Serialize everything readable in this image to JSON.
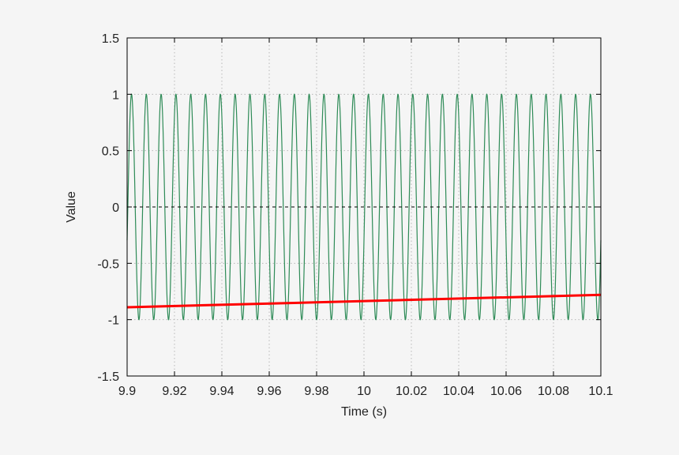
{
  "chart_data": {
    "type": "line",
    "title": "",
    "xlabel": "Time (s)",
    "ylabel": "Value",
    "xlim": [
      9.9,
      10.1
    ],
    "ylim": [
      -1.5,
      1.5
    ],
    "grid": true,
    "legend": "none",
    "xticks": [
      9.9,
      9.92,
      9.94,
      9.96,
      9.98,
      10,
      10.02,
      10.04,
      10.06,
      10.08,
      10.1
    ],
    "xtick_labels": [
      "9.9",
      "9.92",
      "9.94",
      "9.96",
      "9.98",
      "10",
      "10.02",
      "10.04",
      "10.06",
      "10.08",
      "10.1"
    ],
    "yticks": [
      -1.5,
      -1,
      -0.5,
      0,
      0.5,
      1,
      1.5
    ],
    "ytick_labels": [
      "-1.5",
      "-1",
      "-0.5",
      "0",
      "0.5",
      "1",
      "1.5"
    ],
    "series": [
      {
        "kind": "sine",
        "amplitude": 1,
        "frequency_hz": 160,
        "phase_rad": -0.3,
        "color": "#2e8b57"
      },
      {
        "kind": "linear",
        "x": [
          9.9,
          10.1
        ],
        "y": [
          -0.89,
          -0.78
        ],
        "color": "#ff0000"
      },
      {
        "kind": "reference",
        "x": [
          9.9,
          10.1
        ],
        "y": [
          0,
          0
        ],
        "color": "#000000"
      }
    ]
  }
}
